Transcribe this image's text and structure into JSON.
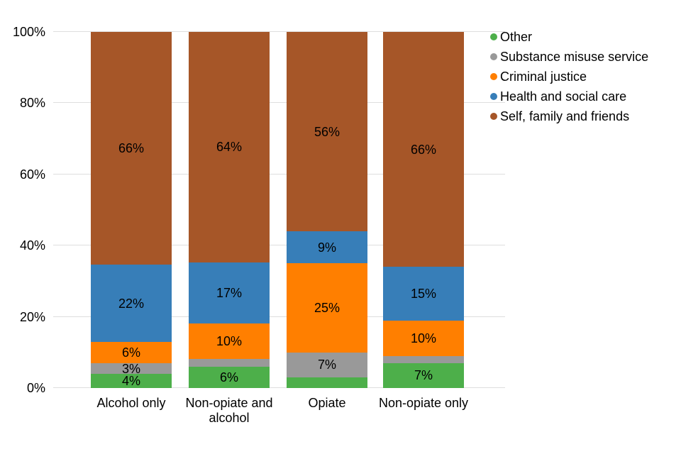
{
  "chart_data": {
    "type": "bar",
    "stacked": true,
    "percent_stacked": true,
    "title": "",
    "xlabel": "",
    "ylabel": "",
    "grid": true,
    "legend_position": "top-right",
    "categories": [
      "Alcohol only",
      "Non-opiate and\nalcohol",
      "Opiate",
      "Non-opiate only"
    ],
    "series": [
      {
        "name": "Other",
        "color": "#4DAF4A",
        "values": [
          4,
          6,
          3,
          7
        ],
        "labels": [
          "4%",
          "6%",
          "",
          "7%"
        ]
      },
      {
        "name": "Substance misuse service",
        "color": "#999999",
        "values": [
          3,
          2,
          7,
          2
        ],
        "labels": [
          "3%",
          "",
          "7%",
          ""
        ]
      },
      {
        "name": "Criminal justice",
        "color": "#FF7F00",
        "values": [
          6,
          10,
          25,
          10
        ],
        "labels": [
          "6%",
          "10%",
          "25%",
          "10%"
        ]
      },
      {
        "name": "Health and social care",
        "color": "#377EB8",
        "values": [
          22,
          17,
          9,
          15
        ],
        "labels": [
          "22%",
          "17%",
          "9%",
          "15%"
        ]
      },
      {
        "name": "Self, family and friends",
        "color": "#A65628",
        "values": [
          66,
          64,
          56,
          66
        ],
        "labels": [
          "66%",
          "64%",
          "56%",
          "66%"
        ]
      }
    ],
    "y_axis": {
      "range": [
        0,
        100
      ],
      "tick_values": [
        0,
        20,
        40,
        60,
        80,
        100
      ],
      "tick_labels": [
        "0%",
        "20%",
        "40%",
        "60%",
        "80%",
        "100%"
      ]
    },
    "legend": [
      "Other",
      "Substance misuse service",
      "Criminal justice",
      "Health and social care",
      "Self, family and friends"
    ],
    "colors": {
      "gridline": "#dedede",
      "text": "#000000",
      "background": "#ffffff"
    }
  }
}
